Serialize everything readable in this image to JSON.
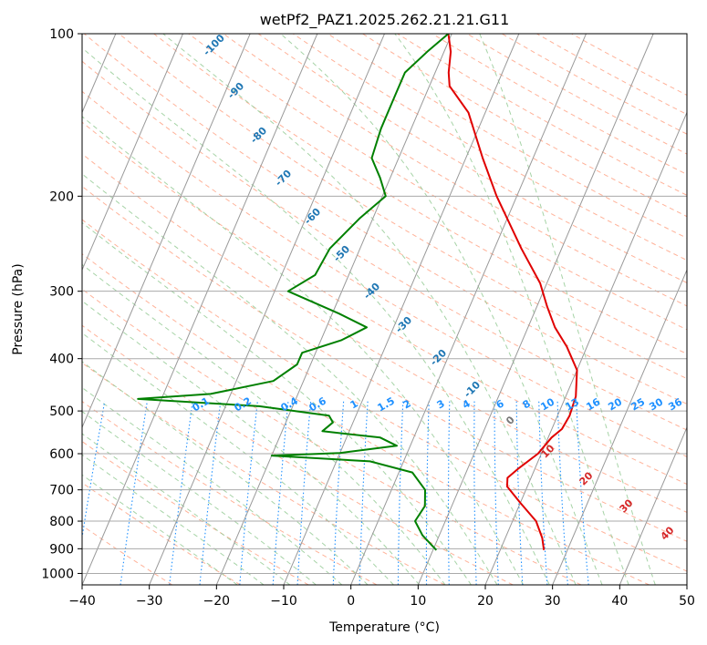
{
  "chart_data": {
    "type": "line",
    "subtype": "skew-t log-p diagram",
    "title": "wetPf2_PAZ1.2025.262.21.21.G11",
    "xlabel": "Temperature (°C)",
    "ylabel": "Pressure (hPa)",
    "xlim": [
      -40,
      50
    ],
    "ylim": [
      1050,
      100
    ],
    "x_ticks": [
      -40,
      -30,
      -20,
      -10,
      0,
      10,
      20,
      30,
      40,
      50
    ],
    "x_tick_labels": [
      "−40",
      "−30",
      "−20",
      "−10",
      "0",
      "10",
      "20",
      "30",
      "40",
      "50"
    ],
    "y_ticks": [
      1000,
      900,
      800,
      700,
      600,
      500,
      400,
      300,
      200,
      100
    ],
    "y_tick_labels": [
      "1000",
      "900",
      "800",
      "700",
      "600",
      "500",
      "400",
      "300",
      "200",
      "100"
    ],
    "grid": true,
    "colors": {
      "temperature": "#e00000",
      "dewpoint": "#008000",
      "isotherm": "#999999",
      "dry_adiabat": "#ff9f80",
      "moist_adiabat": "#90c890",
      "mixing_ratio": "#1e90ff",
      "iso_label": "#1f77b4",
      "red_label": "#d62728"
    },
    "series": [
      {
        "name": "Temperature",
        "values": [
          {
            "p": 905,
            "t": 26.5
          },
          {
            "p": 860,
            "t": 25.5
          },
          {
            "p": 800,
            "t": 23.5
          },
          {
            "p": 740,
            "t": 20.0
          },
          {
            "p": 690,
            "t": 17.0
          },
          {
            "p": 665,
            "t": 16.5
          },
          {
            "p": 640,
            "t": 17.5
          },
          {
            "p": 600,
            "t": 19.5
          },
          {
            "p": 560,
            "t": 20.5
          },
          {
            "p": 540,
            "t": 21.5
          },
          {
            "p": 510,
            "t": 21.8
          },
          {
            "p": 470,
            "t": 21.5
          },
          {
            "p": 420,
            "t": 20.0
          },
          {
            "p": 380,
            "t": 17.0
          },
          {
            "p": 350,
            "t": 14.0
          },
          {
            "p": 320,
            "t": 11.5
          },
          {
            "p": 290,
            "t": 9.0
          },
          {
            "p": 250,
            "t": 4.0
          },
          {
            "p": 200,
            "t": -3.0
          },
          {
            "p": 170,
            "t": -7.5
          },
          {
            "p": 140,
            "t": -12.5
          },
          {
            "p": 125,
            "t": -17.0
          },
          {
            "p": 118,
            "t": -18.0
          },
          {
            "p": 108,
            "t": -19.0
          },
          {
            "p": 100,
            "t": -20.5
          }
        ]
      },
      {
        "name": "Dewpoint",
        "values": [
          {
            "p": 905,
            "t": 10.5
          },
          {
            "p": 850,
            "t": 7.5
          },
          {
            "p": 800,
            "t": 5.5
          },
          {
            "p": 750,
            "t": 6.0
          },
          {
            "p": 700,
            "t": 5.0
          },
          {
            "p": 650,
            "t": 2.0
          },
          {
            "p": 620,
            "t": -5.0
          },
          {
            "p": 605,
            "t": -20.0
          },
          {
            "p": 598,
            "t": -10.0
          },
          {
            "p": 580,
            "t": -2.0
          },
          {
            "p": 560,
            "t": -5.0
          },
          {
            "p": 545,
            "t": -14.0
          },
          {
            "p": 525,
            "t": -13.0
          },
          {
            "p": 510,
            "t": -14.0
          },
          {
            "p": 490,
            "t": -25.0
          },
          {
            "p": 475,
            "t": -43.5
          },
          {
            "p": 465,
            "t": -33.0
          },
          {
            "p": 440,
            "t": -24.5
          },
          {
            "p": 410,
            "t": -22.0
          },
          {
            "p": 390,
            "t": -22.0
          },
          {
            "p": 370,
            "t": -17.0
          },
          {
            "p": 350,
            "t": -14.0
          },
          {
            "p": 330,
            "t": -19.0
          },
          {
            "p": 300,
            "t": -28.0
          },
          {
            "p": 280,
            "t": -25.0
          },
          {
            "p": 250,
            "t": -24.5
          },
          {
            "p": 220,
            "t": -22.0
          },
          {
            "p": 200,
            "t": -19.5
          },
          {
            "p": 185,
            "t": -21.5
          },
          {
            "p": 170,
            "t": -24.0
          },
          {
            "p": 150,
            "t": -24.5
          },
          {
            "p": 130,
            "t": -24.5
          },
          {
            "p": 118,
            "t": -24.5
          },
          {
            "p": 108,
            "t": -22.5
          },
          {
            "p": 100,
            "t": -20.5
          }
        ]
      }
    ],
    "isotherm_labels": [
      "-100",
      "-90",
      "-80",
      "-70",
      "-60",
      "-50",
      "-40",
      "-30",
      "-20",
      "-10",
      "0"
    ],
    "red_labels": [
      "10",
      "20",
      "30",
      "40"
    ],
    "mixing_ratio_labels": [
      "0.1",
      "0.2",
      "0.4",
      "0.6",
      "1",
      "1.5",
      "2",
      "3",
      "4",
      "6",
      "8",
      "10",
      "13",
      "16",
      "20",
      "25",
      "30",
      "36"
    ]
  }
}
